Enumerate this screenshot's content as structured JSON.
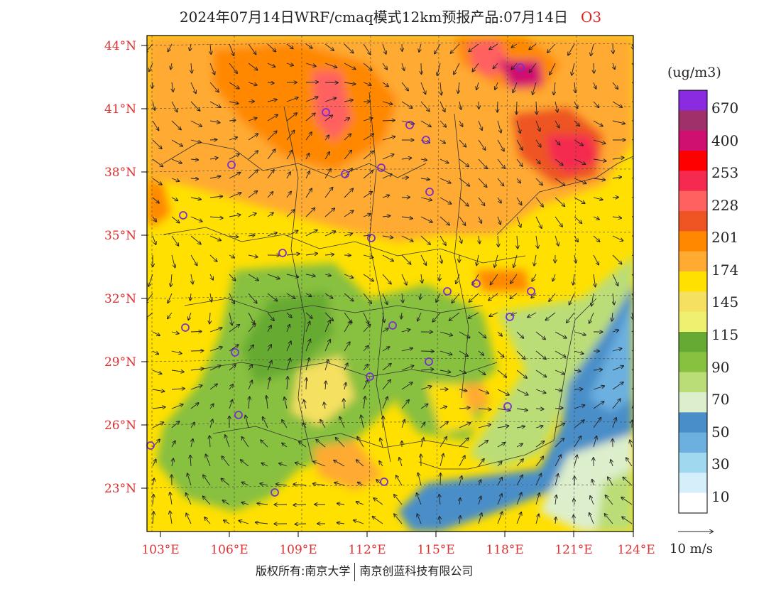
{
  "header": {
    "title": "2024年07月14日WRF/cmaq模式12km预报产品:07月14日",
    "species": "O3"
  },
  "map": {
    "lat_ticks": [
      "44°N",
      "41°N",
      "38°N",
      "35°N",
      "32°N",
      "29°N",
      "26°N",
      "23°N"
    ],
    "lon_ticks": [
      "103°E",
      "106°E",
      "109°E",
      "112°E",
      "115°E",
      "118°E",
      "121°E",
      "124°E"
    ],
    "tick_color": "#e03030"
  },
  "legend": {
    "unit": "(ug/m3)",
    "levels": [
      "670",
      "400",
      "253",
      "228",
      "201",
      "174",
      "145",
      "115",
      "90",
      "70",
      "50",
      "30",
      "10"
    ],
    "colors": [
      "#8a2be2",
      "#a0306a",
      "#d01070",
      "#ff0000",
      "#f52a50",
      "#ff6060",
      "#ee5522",
      "#ff8800",
      "#ffaa30",
      "#ffe000",
      "#f5e060",
      "#f0f070",
      "#66aa33",
      "#88c040",
      "#bbdd77",
      "#ddeecc",
      "#4a8ec8",
      "#6cb0e0",
      "#a0d8f0",
      "#d4eefa",
      "#ffffff"
    ]
  },
  "wind_scale": {
    "label": "10 m/s"
  },
  "footer": {
    "left": "版权所有:南京大学",
    "right": "南京创蓝科技有限公司"
  }
}
